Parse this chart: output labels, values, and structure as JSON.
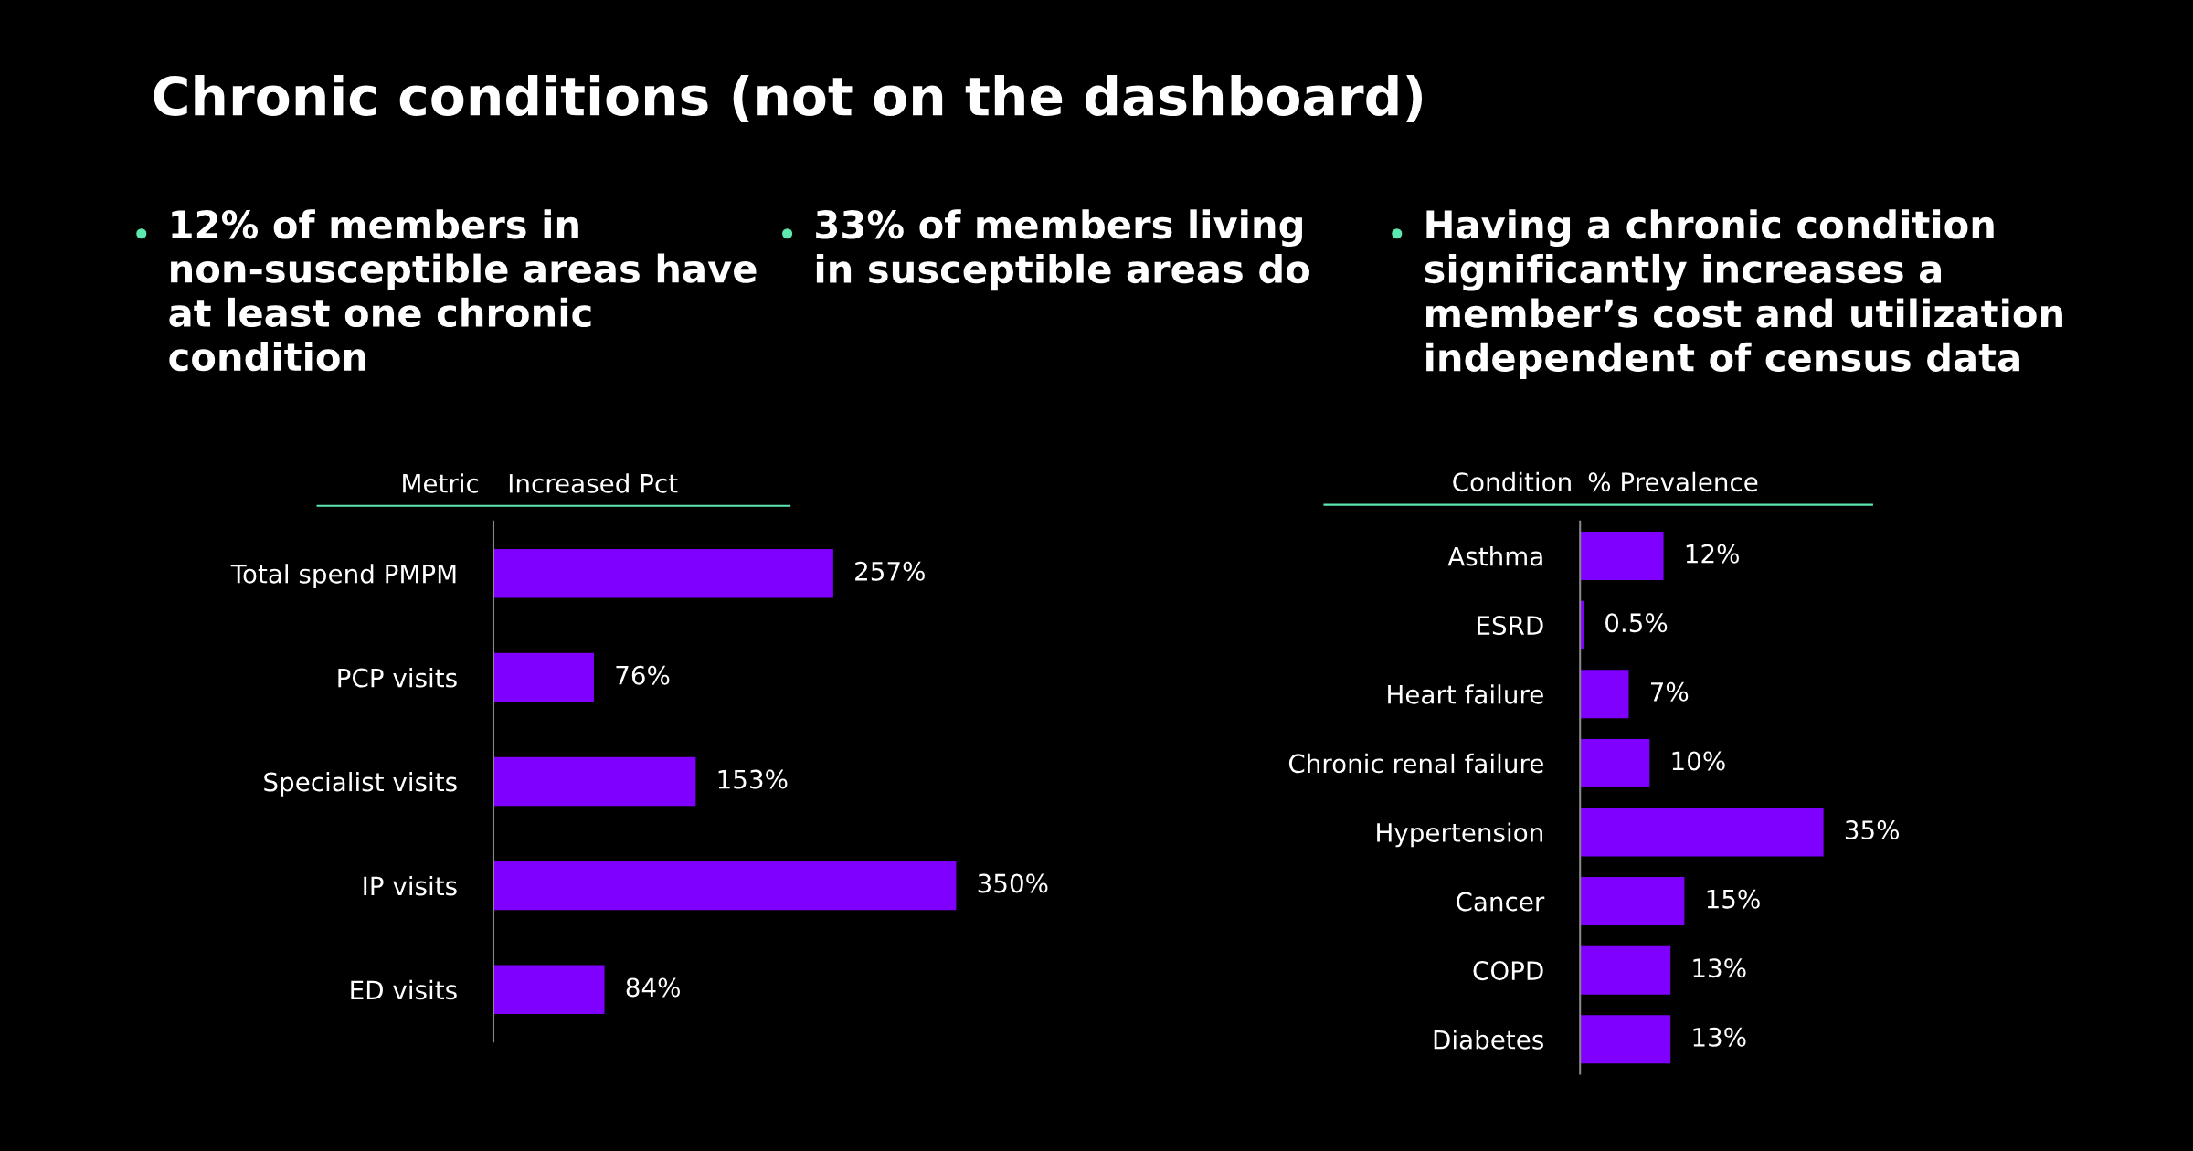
{
  "chart_data": [
    {
      "type": "other",
      "title": "Chronic conditions (not on the dashboard)",
      "annotations": [
        "12% of members in non-susceptible areas have at least one chronic condition",
        "33% of members living in susceptible areas do",
        "Having a chronic condition significantly increases a member’s cost and utilization independent of census data"
      ]
    },
    {
      "type": "bar",
      "orientation": "horizontal",
      "ylabel": "Metric",
      "xlabel": "Increased Pct",
      "color": "#8000ff",
      "categories": [
        "Total spend PMPM",
        "PCP visits",
        "Specialist visits",
        "IP visits",
        "ED visits"
      ],
      "values": [
        257,
        76,
        153,
        350,
        84
      ],
      "value_labels": [
        "257%",
        "76%",
        "153%",
        "350%",
        "84%"
      ]
    },
    {
      "type": "bar",
      "orientation": "horizontal",
      "ylabel": "Condition",
      "xlabel": "% Prevalence",
      "color": "#8000ff",
      "categories": [
        "Asthma",
        "ESRD",
        "Heart failure",
        "Chronic renal failure",
        "Hypertension",
        "Cancer",
        "COPD",
        "Diabetes"
      ],
      "values": [
        12,
        0.5,
        7,
        10,
        35,
        15,
        13,
        13
      ],
      "value_labels": [
        "12%",
        "0.5%",
        "7%",
        "10%",
        "35%",
        "15%",
        "13%",
        "13%"
      ]
    }
  ]
}
